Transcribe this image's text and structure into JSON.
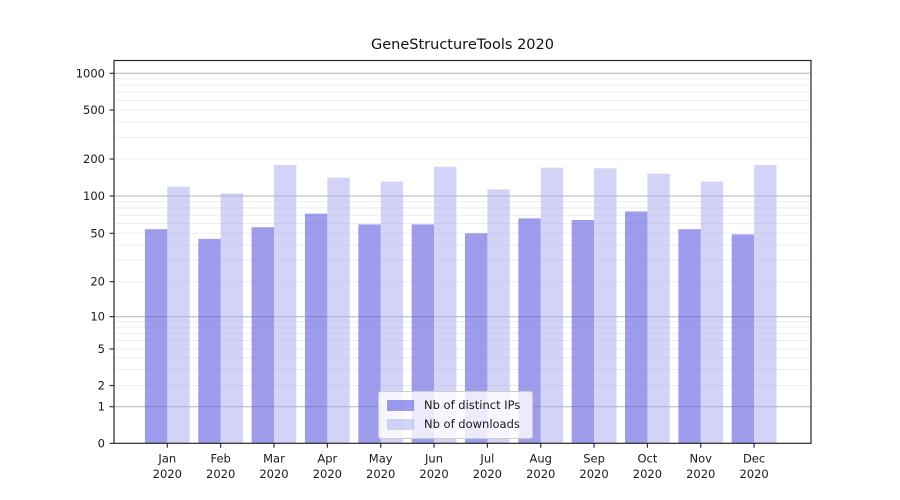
{
  "figure": {
    "title": "GeneStructureTools 2020"
  },
  "chart_data": {
    "type": "bar",
    "title": "GeneStructureTools 2020",
    "xlabel": "",
    "ylabel": "",
    "y_scale": "symlog",
    "grid": true,
    "legend_position": "lower-center-inside",
    "categories": [
      "Jan",
      "Feb",
      "Mar",
      "Apr",
      "May",
      "Jun",
      "Jul",
      "Aug",
      "Sep",
      "Oct",
      "Nov",
      "Dec"
    ],
    "x_year_label": "2020",
    "y_ticks": [
      0,
      1,
      2,
      5,
      10,
      20,
      50,
      100,
      200,
      500,
      1000
    ],
    "ylim": [
      0,
      1300
    ],
    "series": [
      {
        "name": "Nb of distinct IPs",
        "color": "rgba(97,97,224,0.62)",
        "values": [
          54,
          45,
          56,
          72,
          59,
          59,
          50,
          66,
          64,
          75,
          54,
          49
        ]
      },
      {
        "name": "Nb of downloads",
        "color": "rgba(175,175,242,0.55)",
        "values": [
          119,
          105,
          179,
          141,
          131,
          173,
          113,
          170,
          168,
          152,
          131,
          179
        ]
      }
    ]
  }
}
